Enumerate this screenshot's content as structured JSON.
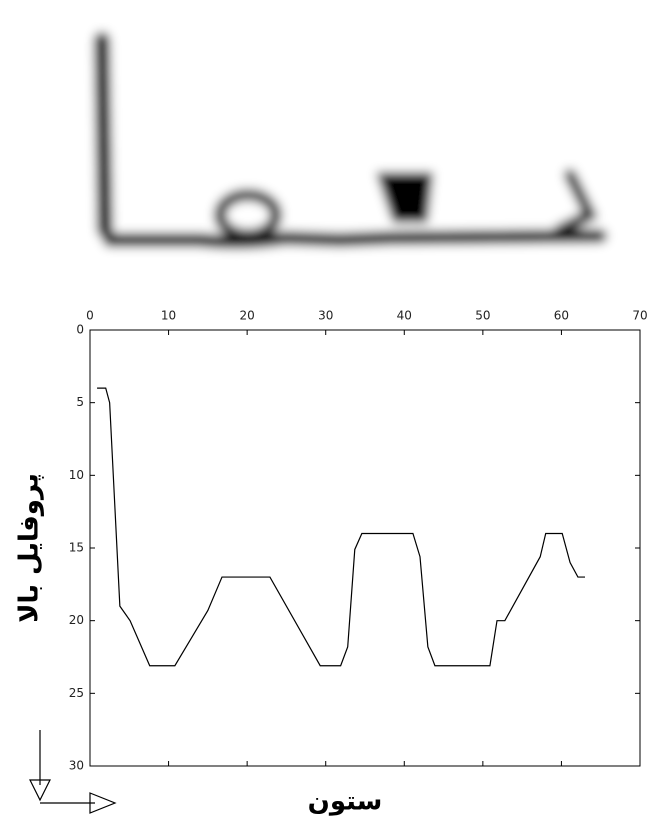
{
  "chart_data": {
    "type": "line",
    "xlabel": "ستون",
    "ylabel": "پروفایل بالا",
    "x": [
      0.9,
      2,
      2.5,
      3.8,
      5.1,
      7.6,
      10.8,
      15,
      16.8,
      22.9,
      29.3,
      31.9,
      32.8,
      33.7,
      34.6,
      41.1,
      42,
      43,
      43.9,
      50.9,
      51.8,
      52.8,
      57.3,
      58,
      60.1,
      61.1,
      62.1,
      63
    ],
    "series": [
      {
        "color": "#000000",
        "values": [
          4,
          4,
          5,
          19,
          20,
          23.1,
          23.1,
          19.3,
          17,
          17,
          23.1,
          23.1,
          21.8,
          15.1,
          14,
          14,
          15.6,
          21.8,
          23.1,
          23.1,
          20,
          20,
          15.6,
          14,
          14,
          16,
          17,
          17
        ]
      }
    ],
    "xlim": [
      0,
      70
    ],
    "xticks": [
      0,
      10,
      20,
      30,
      40,
      50,
      60,
      70
    ],
    "ylim": [
      0,
      30
    ],
    "yticks": [
      0,
      5,
      10,
      15,
      20,
      25,
      30
    ],
    "y_inverted": true,
    "x_axis_top": true
  }
}
